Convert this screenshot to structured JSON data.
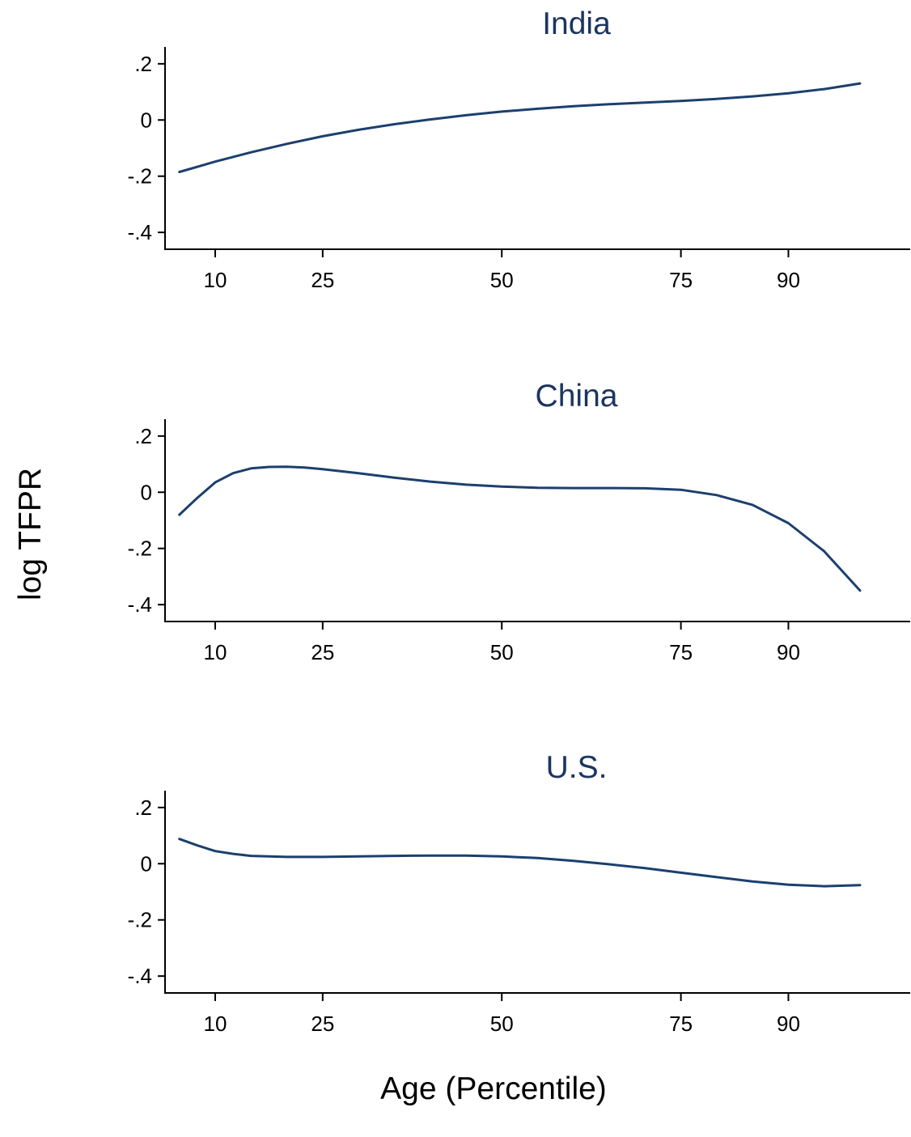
{
  "figure": {
    "ylabel": "log TFPR",
    "xlabel": "Age (Percentile)"
  },
  "colors": {
    "line": "#1c3f6e",
    "title": "#1c3560",
    "axis": "#000000"
  },
  "chart_data": [
    {
      "type": "line",
      "title": "India",
      "xlim": [
        3,
        107
      ],
      "ylim": [
        -0.46,
        0.26
      ],
      "xticks": [
        10,
        25,
        50,
        75,
        90
      ],
      "xtick_labels": [
        "10",
        "25",
        "50",
        "75",
        "90"
      ],
      "yticks": [
        0.2,
        0,
        -0.2,
        -0.4
      ],
      "ytick_labels": [
        ".2",
        "0",
        "-.2",
        "-.4"
      ],
      "series": [
        {
          "x": [
            5,
            10,
            15,
            20,
            25,
            30,
            35,
            40,
            45,
            50,
            55,
            60,
            65,
            70,
            75,
            80,
            85,
            90,
            95,
            100
          ],
          "y": [
            -0.185,
            -0.148,
            -0.115,
            -0.085,
            -0.058,
            -0.035,
            -0.015,
            0.002,
            0.017,
            0.03,
            0.04,
            0.049,
            0.056,
            0.062,
            0.068,
            0.075,
            0.084,
            0.095,
            0.11,
            0.13
          ]
        }
      ]
    },
    {
      "type": "line",
      "title": "China",
      "xlim": [
        3,
        107
      ],
      "ylim": [
        -0.46,
        0.26
      ],
      "xticks": [
        10,
        25,
        50,
        75,
        90
      ],
      "xtick_labels": [
        "10",
        "25",
        "50",
        "75",
        "90"
      ],
      "yticks": [
        0.2,
        0,
        -0.2,
        -0.4
      ],
      "ytick_labels": [
        ".2",
        "0",
        "-.2",
        "-.4"
      ],
      "series": [
        {
          "x": [
            5,
            7.5,
            10,
            12.5,
            15,
            17.5,
            20,
            22.5,
            25,
            30,
            35,
            40,
            45,
            50,
            55,
            60,
            65,
            70,
            75,
            80,
            85,
            90,
            95,
            100
          ],
          "y": [
            -0.08,
            -0.02,
            0.035,
            0.068,
            0.085,
            0.09,
            0.091,
            0.088,
            0.082,
            0.068,
            0.052,
            0.038,
            0.027,
            0.02,
            0.016,
            0.015,
            0.015,
            0.014,
            0.009,
            -0.01,
            -0.045,
            -0.11,
            -0.21,
            -0.35
          ]
        }
      ]
    },
    {
      "type": "line",
      "title": "U.S.",
      "xlim": [
        3,
        107
      ],
      "ylim": [
        -0.46,
        0.26
      ],
      "xticks": [
        10,
        25,
        50,
        75,
        90
      ],
      "xtick_labels": [
        "10",
        "25",
        "50",
        "75",
        "90"
      ],
      "yticks": [
        0.2,
        0,
        -0.2,
        -0.4
      ],
      "ytick_labels": [
        ".2",
        "0",
        "-.2",
        "-.4"
      ],
      "series": [
        {
          "x": [
            5,
            7.5,
            10,
            12.5,
            15,
            20,
            25,
            30,
            35,
            40,
            45,
            50,
            55,
            60,
            65,
            70,
            75,
            80,
            85,
            90,
            95,
            100
          ],
          "y": [
            0.088,
            0.065,
            0.045,
            0.035,
            0.028,
            0.024,
            0.024,
            0.026,
            0.028,
            0.029,
            0.029,
            0.026,
            0.02,
            0.01,
            -0.002,
            -0.016,
            -0.032,
            -0.048,
            -0.063,
            -0.075,
            -0.08,
            -0.076
          ]
        }
      ]
    }
  ]
}
